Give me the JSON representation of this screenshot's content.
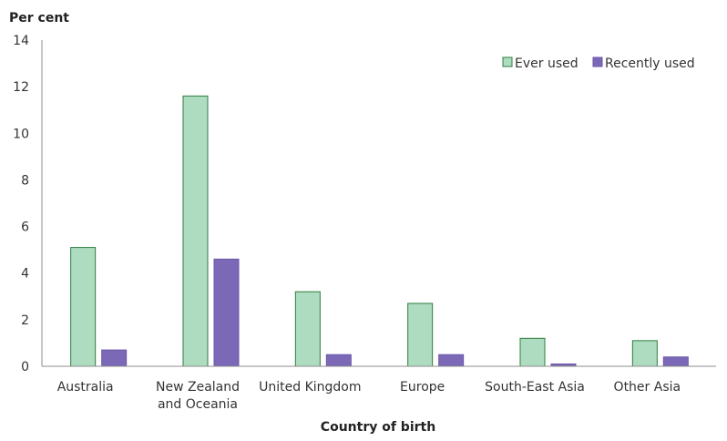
{
  "chart_data": {
    "type": "bar",
    "title": "",
    "xlabel": "Country of birth",
    "ylabel": "Per cent",
    "ylim": [
      0,
      14
    ],
    "yticks": [
      0,
      2,
      4,
      6,
      8,
      10,
      12,
      14
    ],
    "grid": false,
    "legend_position": "top-right",
    "categories": [
      [
        "Australia"
      ],
      [
        "New Zealand",
        "and Oceania"
      ],
      [
        "United Kingdom"
      ],
      [
        "Europe"
      ],
      [
        "South-East Asia"
      ],
      [
        "Other Asia"
      ]
    ],
    "series": [
      {
        "name": "Ever used",
        "values": [
          5.1,
          11.6,
          3.2,
          2.7,
          1.2,
          1.1
        ],
        "fill": "#aedcc0",
        "stroke": "#2e7d3e"
      },
      {
        "name": "Recently used",
        "values": [
          0.7,
          4.6,
          0.5,
          0.5,
          0.1,
          0.4
        ],
        "fill": "#7b68b6",
        "stroke": "#6a57a8"
      }
    ]
  }
}
